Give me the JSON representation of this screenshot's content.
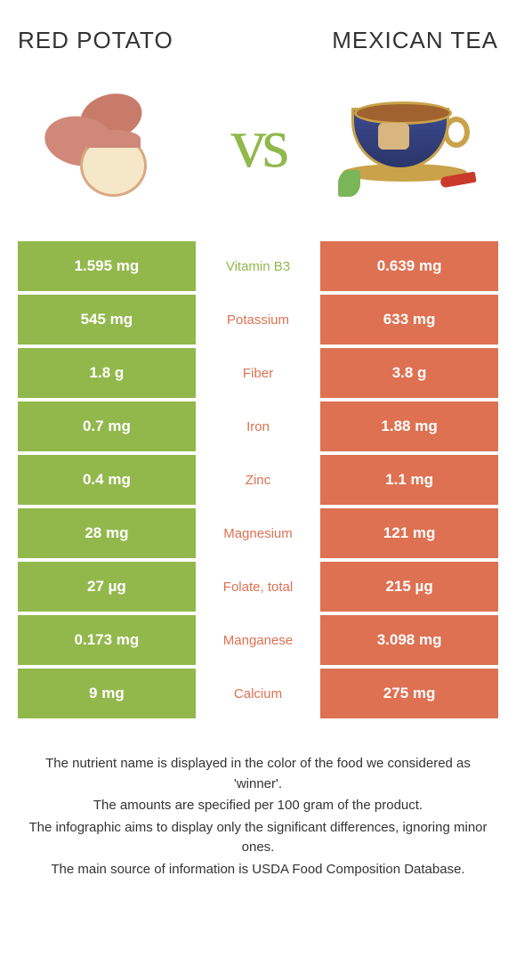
{
  "header": {
    "left_title": "Red potato",
    "right_title": "Mexican tea",
    "vs": "vs"
  },
  "colors": {
    "left": "#92b84c",
    "right": "#dd7152"
  },
  "rows": [
    {
      "left": "1.595 mg",
      "mid": "Vitamin B3",
      "right": "0.639 mg",
      "winner": "left"
    },
    {
      "left": "545 mg",
      "mid": "Potassium",
      "right": "633 mg",
      "winner": "right"
    },
    {
      "left": "1.8 g",
      "mid": "Fiber",
      "right": "3.8 g",
      "winner": "right"
    },
    {
      "left": "0.7 mg",
      "mid": "Iron",
      "right": "1.88 mg",
      "winner": "right"
    },
    {
      "left": "0.4 mg",
      "mid": "Zinc",
      "right": "1.1 mg",
      "winner": "right"
    },
    {
      "left": "28 mg",
      "mid": "Magnesium",
      "right": "121 mg",
      "winner": "right"
    },
    {
      "left": "27 µg",
      "mid": "Folate, total",
      "right": "215 µg",
      "winner": "right"
    },
    {
      "left": "0.173 mg",
      "mid": "Manganese",
      "right": "3.098 mg",
      "winner": "right"
    },
    {
      "left": "9 mg",
      "mid": "Calcium",
      "right": "275 mg",
      "winner": "right"
    }
  ],
  "footer": {
    "line1": "The nutrient name is displayed in the color of the food we considered as 'winner'.",
    "line2": "The amounts are specified per 100 gram of the product.",
    "line3": "The infographic aims to display only the significant differences, ignoring minor ones.",
    "line4": "The main source of information is USDA Food Composition Database."
  }
}
